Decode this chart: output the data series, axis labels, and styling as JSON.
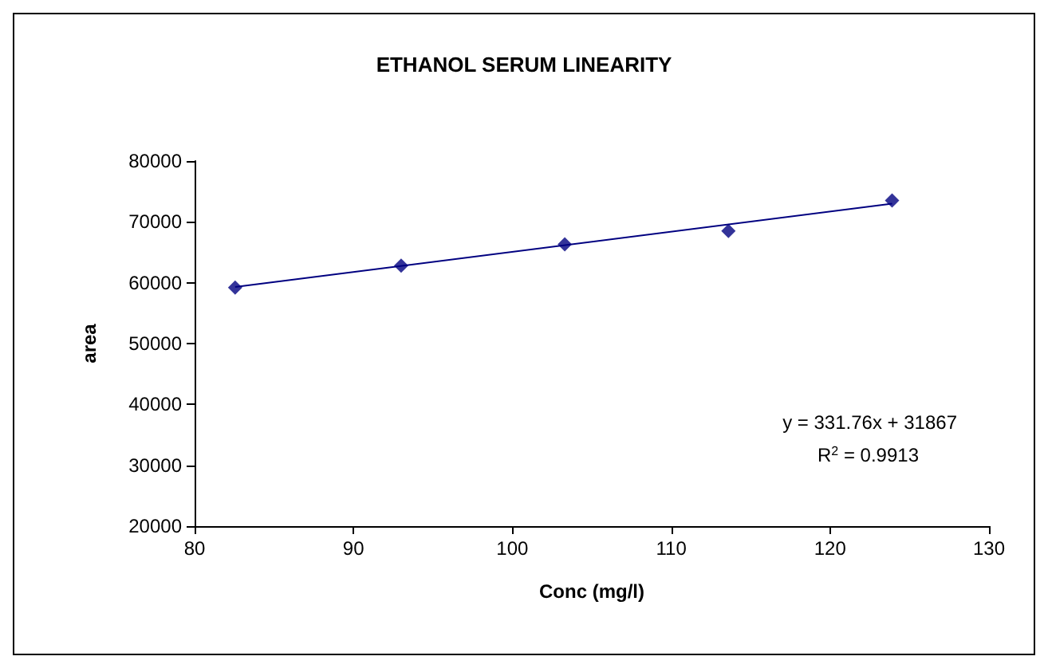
{
  "chart_data": {
    "type": "scatter",
    "title": "ETHANOL SERUM LINEARITY",
    "xlabel": "Conc (mg/l)",
    "ylabel": "area",
    "x": [
      82.55,
      93.0,
      103.3,
      113.6,
      123.9
    ],
    "series": [
      {
        "color": "#000080",
        "values": [
          59200,
          62800,
          66300,
          68500,
          73500
        ],
        "marker": "diamond"
      },
      {
        "type": "line",
        "color": "#000080",
        "x": [
          82.55,
          123.9
        ],
        "values": [
          59300,
          73000
        ],
        "marker": "none",
        "line_style": "solid"
      }
    ],
    "xlim": [
      80,
      130
    ],
    "xticks": [
      80,
      90,
      100,
      110,
      120,
      130
    ],
    "ylim": [
      20000,
      80000
    ],
    "yticks": [
      20000,
      30000,
      40000,
      50000,
      60000,
      70000,
      80000
    ],
    "grid": false,
    "annotations": [
      "y = 331.76x + 31867",
      "R$^{2}$ = 0.9913"
    ]
  }
}
